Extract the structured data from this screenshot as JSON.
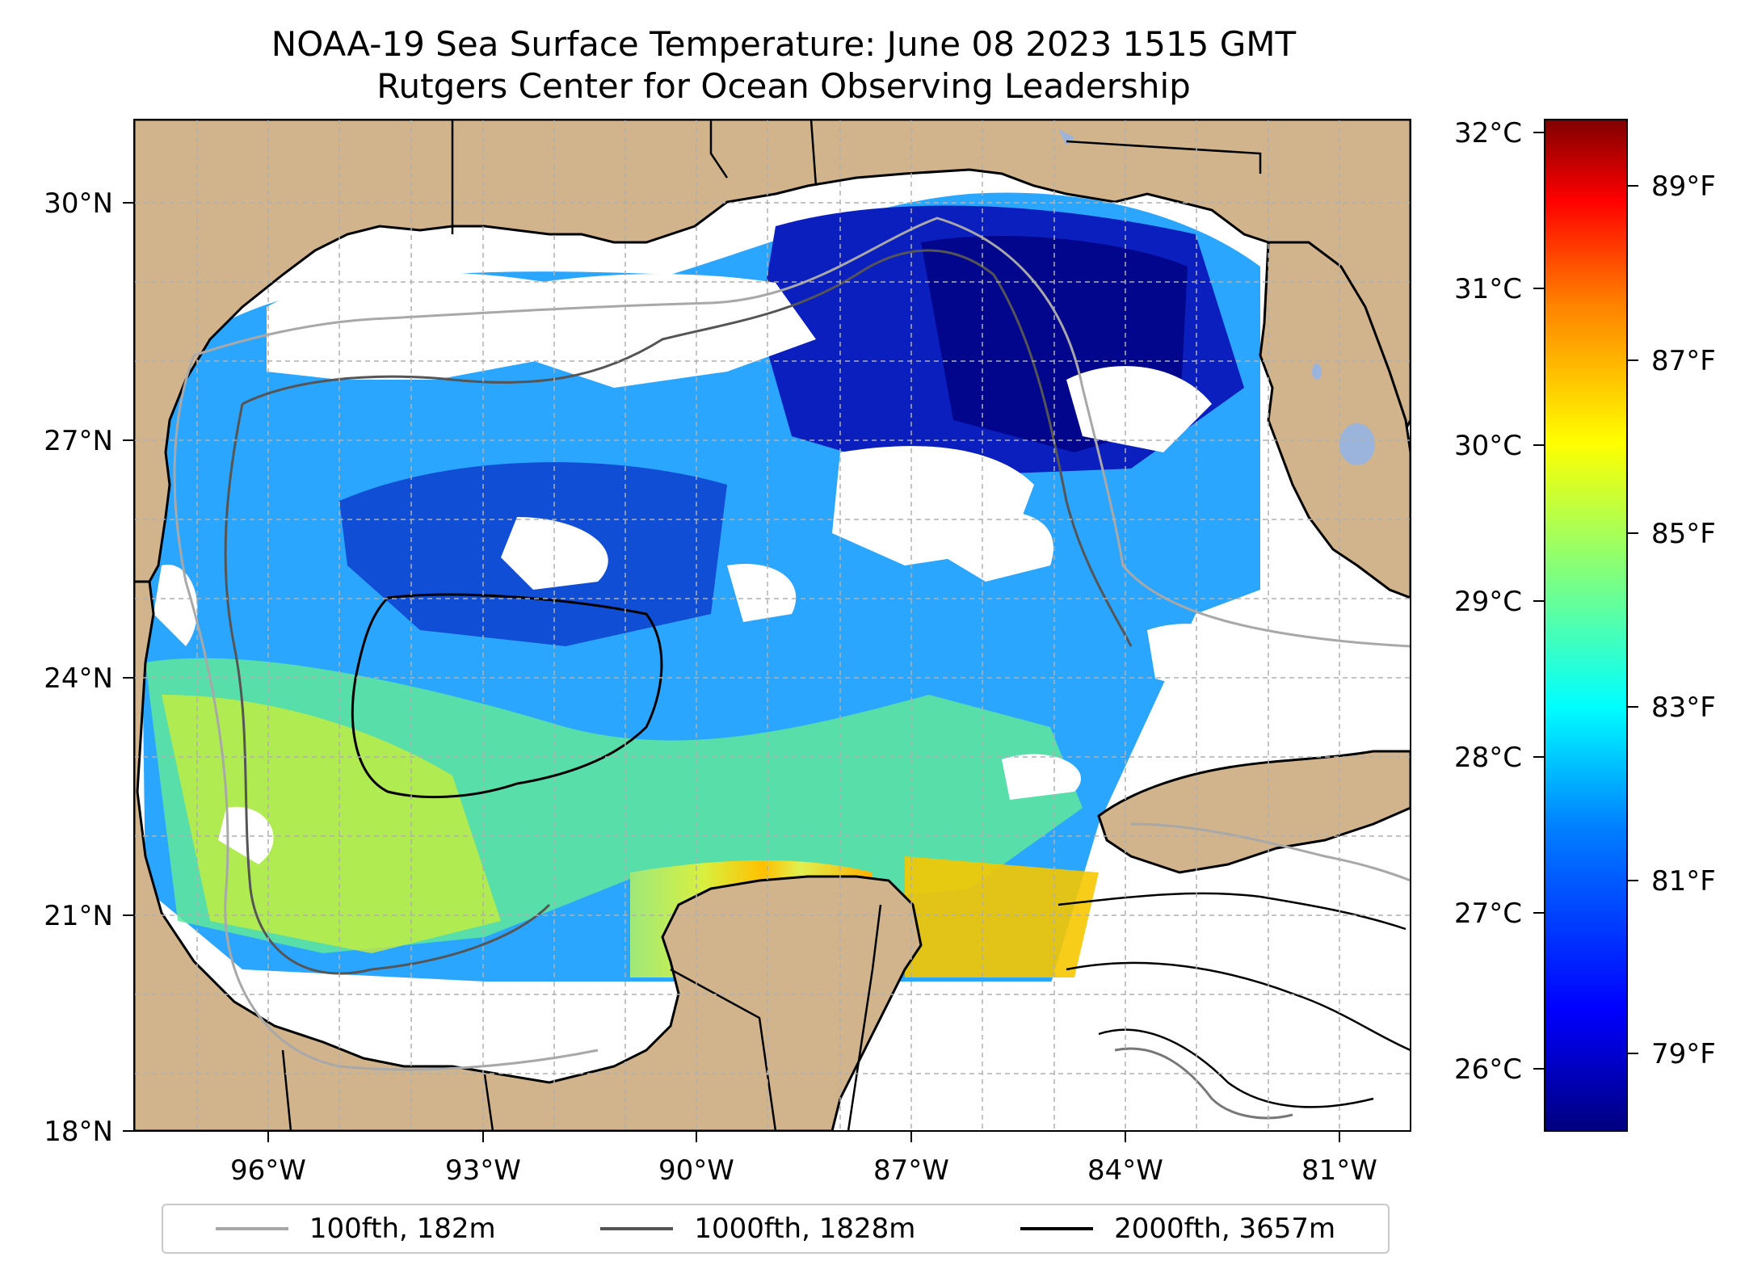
{
  "title": "NOAA-19 Sea Surface Temperature: June 08 2023 1515 GMT",
  "subtitle": "Rutgers Center for Ocean Observing Leadership",
  "latitude_labels": [
    "30°N",
    "27°N",
    "24°N",
    "21°N",
    "18°N"
  ],
  "longitude_labels": [
    "96°W",
    "93°W",
    "90°W",
    "87°W",
    "84°W",
    "81°W"
  ],
  "colorbar": {
    "celsius_labels": [
      "32°C",
      "31°C",
      "30°C",
      "29°C",
      "28°C",
      "27°C",
      "26°C"
    ],
    "fahrenheit_labels": [
      "89°F",
      "87°F",
      "85°F",
      "83°F",
      "81°F",
      "79°F"
    ],
    "colormap": [
      "#00007f",
      "#0000ff",
      "#007fff",
      "#00ffff",
      "#7fff7f",
      "#ffff00",
      "#ff7f00",
      "#ff0000",
      "#7f0000"
    ]
  },
  "legend": [
    {
      "label": "100fth, 182m",
      "color": "#a8a8a8"
    },
    {
      "label": "1000fth, 1828m",
      "color": "#555555"
    },
    {
      "label": "2000fth, 3657m",
      "color": "#000000"
    }
  ],
  "colors": {
    "land": "#d2b48c",
    "no_data": "#ffffff",
    "inland_water": "#9bb4dc",
    "gridline": "#b0b0b0"
  }
}
